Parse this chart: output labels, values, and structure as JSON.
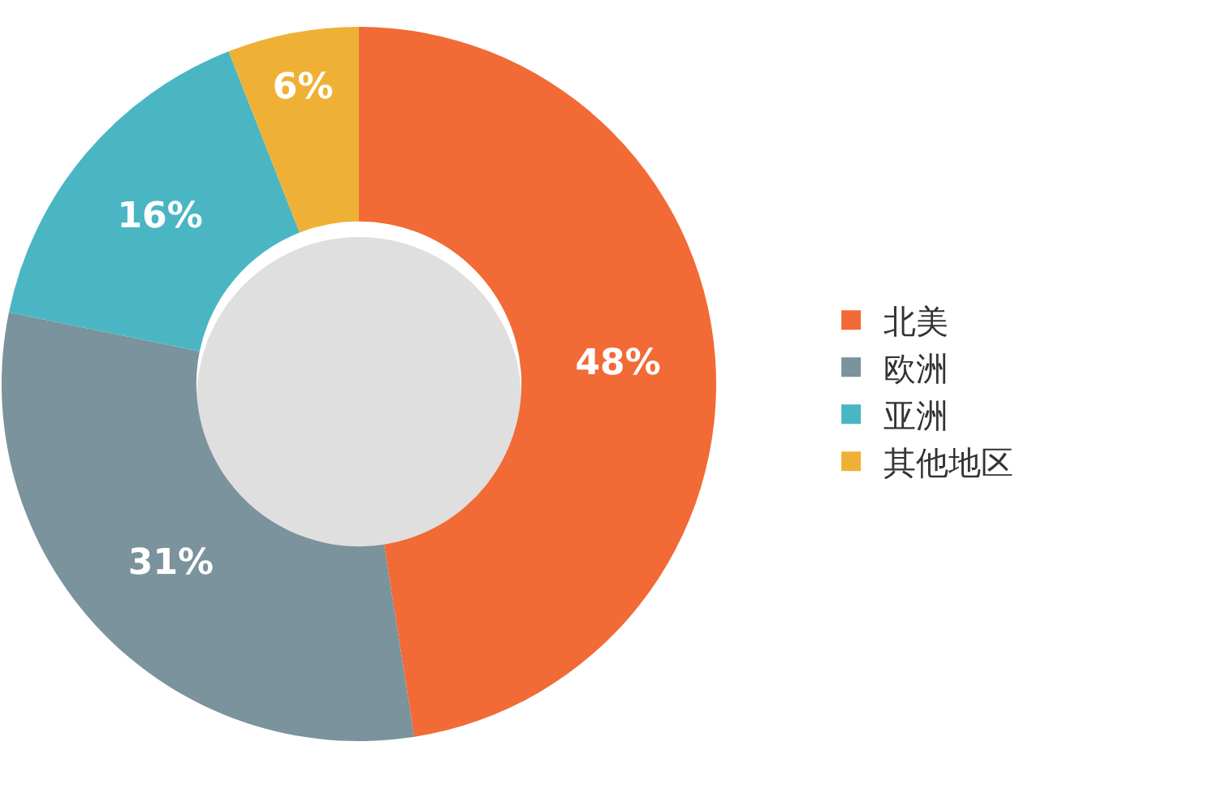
{
  "chart_data": {
    "type": "donut",
    "categories": [
      "北美",
      "欧洲",
      "亚洲",
      "其他地区"
    ],
    "values": [
      48,
      31,
      16,
      6
    ],
    "value_labels": [
      "48%",
      "31%",
      "16%",
      "6%"
    ],
    "colors": [
      "#f26a36",
      "#7a939c",
      "#4ab6c4",
      "#efb135"
    ],
    "legend": "right"
  }
}
